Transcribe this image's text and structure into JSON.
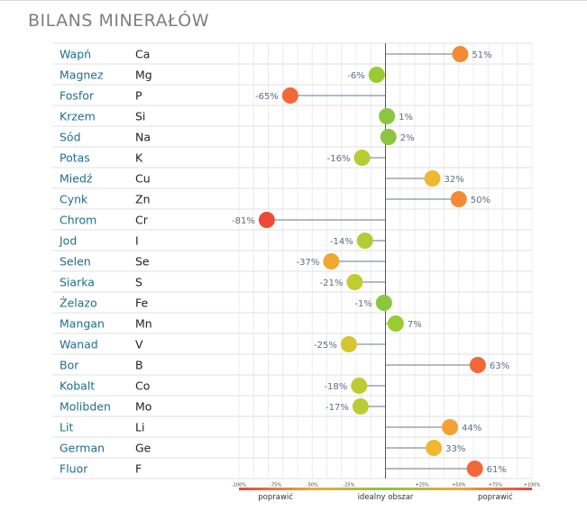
{
  "title": "BILANS MINERAŁÓW",
  "chart_data": {
    "type": "lollipop",
    "title": "BILANS MINERAŁÓW",
    "xlim": [
      -100,
      100
    ],
    "x_ticks": [
      "-100%",
      "-75%",
      "-50%",
      "-25%",
      "+25%",
      "+50%",
      "+75%",
      "+100%"
    ],
    "x_tick_values": [
      -100,
      -75,
      -50,
      -25,
      25,
      50,
      75,
      100
    ],
    "zones": [
      {
        "label": "poprawić",
        "from": -100,
        "to": -50
      },
      {
        "label": "idealny obszar",
        "from": -25,
        "to": 25
      },
      {
        "label": "poprawić",
        "from": 50,
        "to": 100
      }
    ],
    "gradient_colors": [
      "#e8453c",
      "#f0a830",
      "#8cc63f",
      "#f0a830",
      "#e8453c"
    ],
    "rows": [
      {
        "name": "Wapń",
        "symbol": "Ca",
        "value": 51,
        "label": "51%",
        "color": "#f58a32"
      },
      {
        "name": "Magnez",
        "symbol": "Mg",
        "value": -6,
        "label": "-6%",
        "color": "#99cc33"
      },
      {
        "name": "Fosfor",
        "symbol": "P",
        "value": -65,
        "label": "-65%",
        "color": "#f26836"
      },
      {
        "name": "Krzem",
        "symbol": "Si",
        "value": 1,
        "label": "1%",
        "color": "#8cc63f"
      },
      {
        "name": "Sód",
        "symbol": "Na",
        "value": 2,
        "label": "2%",
        "color": "#8cc63f"
      },
      {
        "name": "Potas",
        "symbol": "K",
        "value": -16,
        "label": "-16%",
        "color": "#b6cc33"
      },
      {
        "name": "Miedź",
        "symbol": "Cu",
        "value": 32,
        "label": "32%",
        "color": "#f0b830"
      },
      {
        "name": "Cynk",
        "symbol": "Zn",
        "value": 50,
        "label": "50%",
        "color": "#f58a32"
      },
      {
        "name": "Chrom",
        "symbol": "Cr",
        "value": -81,
        "label": "-81%",
        "color": "#ee4a36"
      },
      {
        "name": "Jod",
        "symbol": "I",
        "value": -14,
        "label": "-14%",
        "color": "#b3cc33"
      },
      {
        "name": "Selen",
        "symbol": "Se",
        "value": -37,
        "label": "-37%",
        "color": "#f0a830"
      },
      {
        "name": "Siarka",
        "symbol": "S",
        "value": -21,
        "label": "-21%",
        "color": "#c2cc30"
      },
      {
        "name": "Żelazo",
        "symbol": "Fe",
        "value": -1,
        "label": "-1%",
        "color": "#8cc63f"
      },
      {
        "name": "Mangan",
        "symbol": "Mn",
        "value": 7,
        "label": "7%",
        "color": "#99cc33"
      },
      {
        "name": "Wanad",
        "symbol": "V",
        "value": -25,
        "label": "-25%",
        "color": "#d6c430"
      },
      {
        "name": "Bor",
        "symbol": "B",
        "value": 63,
        "label": "63%",
        "color": "#f26836"
      },
      {
        "name": "Kobalt",
        "symbol": "Co",
        "value": -18,
        "label": "-18%",
        "color": "#bccc33"
      },
      {
        "name": "Molibden",
        "symbol": "Mo",
        "value": -17,
        "label": "-17%",
        "color": "#b9cc33"
      },
      {
        "name": "Lit",
        "symbol": "Li",
        "value": 44,
        "label": "44%",
        "color": "#f5a032"
      },
      {
        "name": "German",
        "symbol": "Ge",
        "value": 33,
        "label": "33%",
        "color": "#f0b830"
      },
      {
        "name": "Fluor",
        "symbol": "F",
        "value": 61,
        "label": "61%",
        "color": "#f26836"
      }
    ]
  }
}
